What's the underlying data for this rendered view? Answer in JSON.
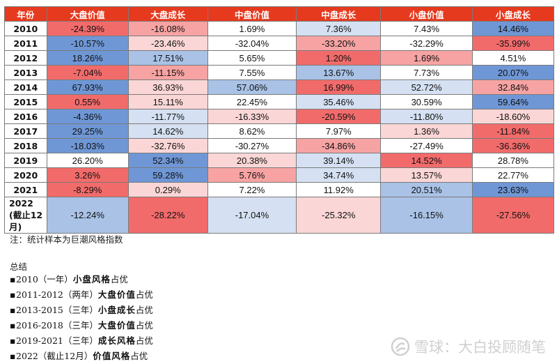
{
  "colors": {
    "header_bg": "#e63a1f",
    "red_dark": "#f26b6b",
    "red_medium": "#f7a3a3",
    "red_light": "#fbd6d6",
    "neutral": "#ffffff",
    "blue_light": "#d5e1f2",
    "blue_medium": "#a9c2e6",
    "blue_dark": "#6f97d6"
  },
  "table": {
    "headers": [
      "年份",
      "大盘价值",
      "大盘成长",
      "中盘价值",
      "中盘成长",
      "小盘价值",
      "小盘成长"
    ],
    "rows": [
      {
        "year": "2010",
        "cells": [
          {
            "text": "-24.39%",
            "tone": "red_dark"
          },
          {
            "text": "-16.08%",
            "tone": "red_medium"
          },
          {
            "text": "1.69%",
            "tone": "neutral"
          },
          {
            "text": "7.36%",
            "tone": "blue_light"
          },
          {
            "text": "7.43%",
            "tone": "neutral"
          },
          {
            "text": "14.46%",
            "tone": "blue_dark"
          }
        ]
      },
      {
        "year": "2011",
        "cells": [
          {
            "text": "-10.57%",
            "tone": "blue_dark"
          },
          {
            "text": "-23.46%",
            "tone": "red_light"
          },
          {
            "text": "-32.04%",
            "tone": "neutral"
          },
          {
            "text": "-33.20%",
            "tone": "red_medium"
          },
          {
            "text": "-32.29%",
            "tone": "neutral"
          },
          {
            "text": "-35.99%",
            "tone": "red_dark"
          }
        ]
      },
      {
        "year": "2012",
        "cells": [
          {
            "text": "18.26%",
            "tone": "blue_dark"
          },
          {
            "text": "17.51%",
            "tone": "blue_medium"
          },
          {
            "text": "5.65%",
            "tone": "neutral"
          },
          {
            "text": "1.20%",
            "tone": "red_dark"
          },
          {
            "text": "1.69%",
            "tone": "red_medium"
          },
          {
            "text": "4.51%",
            "tone": "neutral"
          }
        ]
      },
      {
        "year": "2013",
        "cells": [
          {
            "text": "-7.04%",
            "tone": "red_dark"
          },
          {
            "text": "-11.15%",
            "tone": "red_medium"
          },
          {
            "text": "7.55%",
            "tone": "neutral"
          },
          {
            "text": "13.67%",
            "tone": "blue_medium"
          },
          {
            "text": "7.73%",
            "tone": "neutral"
          },
          {
            "text": "20.07%",
            "tone": "blue_dark"
          }
        ]
      },
      {
        "year": "2014",
        "cells": [
          {
            "text": "67.93%",
            "tone": "blue_dark"
          },
          {
            "text": "36.93%",
            "tone": "red_light"
          },
          {
            "text": "57.06%",
            "tone": "blue_medium"
          },
          {
            "text": "16.99%",
            "tone": "red_dark"
          },
          {
            "text": "52.72%",
            "tone": "blue_light"
          },
          {
            "text": "32.84%",
            "tone": "red_medium"
          }
        ]
      },
      {
        "year": "2015",
        "cells": [
          {
            "text": "0.55%",
            "tone": "red_dark"
          },
          {
            "text": "15.11%",
            "tone": "red_light"
          },
          {
            "text": "22.45%",
            "tone": "neutral"
          },
          {
            "text": "35.46%",
            "tone": "blue_light"
          },
          {
            "text": "30.59%",
            "tone": "neutral"
          },
          {
            "text": "59.64%",
            "tone": "blue_dark"
          }
        ]
      },
      {
        "year": "2016",
        "cells": [
          {
            "text": "-4.36%",
            "tone": "blue_dark"
          },
          {
            "text": "-11.77%",
            "tone": "blue_light"
          },
          {
            "text": "-16.33%",
            "tone": "red_light"
          },
          {
            "text": "-20.59%",
            "tone": "red_dark"
          },
          {
            "text": "-11.80%",
            "tone": "blue_light"
          },
          {
            "text": "-18.60%",
            "tone": "red_light"
          }
        ]
      },
      {
        "year": "2017",
        "cells": [
          {
            "text": "29.25%",
            "tone": "blue_dark"
          },
          {
            "text": "14.62%",
            "tone": "blue_light"
          },
          {
            "text": "8.62%",
            "tone": "neutral"
          },
          {
            "text": "7.97%",
            "tone": "neutral"
          },
          {
            "text": "1.36%",
            "tone": "red_light"
          },
          {
            "text": "-11.84%",
            "tone": "red_dark"
          }
        ]
      },
      {
        "year": "2018",
        "cells": [
          {
            "text": "-18.03%",
            "tone": "blue_dark"
          },
          {
            "text": "-32.76%",
            "tone": "red_light"
          },
          {
            "text": "-30.27%",
            "tone": "neutral"
          },
          {
            "text": "-34.86%",
            "tone": "red_medium"
          },
          {
            "text": "-27.49%",
            "tone": "neutral"
          },
          {
            "text": "-36.36%",
            "tone": "red_dark"
          }
        ]
      },
      {
        "year": "2019",
        "cells": [
          {
            "text": "26.20%",
            "tone": "neutral"
          },
          {
            "text": "52.34%",
            "tone": "blue_dark"
          },
          {
            "text": "20.38%",
            "tone": "red_light"
          },
          {
            "text": "39.14%",
            "tone": "blue_light"
          },
          {
            "text": "14.52%",
            "tone": "red_dark"
          },
          {
            "text": "28.78%",
            "tone": "neutral"
          }
        ]
      },
      {
        "year": "2020",
        "cells": [
          {
            "text": "3.26%",
            "tone": "red_dark"
          },
          {
            "text": "59.28%",
            "tone": "blue_dark"
          },
          {
            "text": "5.76%",
            "tone": "red_medium"
          },
          {
            "text": "34.74%",
            "tone": "blue_light"
          },
          {
            "text": "13.57%",
            "tone": "red_light"
          },
          {
            "text": "22.77%",
            "tone": "neutral"
          }
        ]
      },
      {
        "year": "2021",
        "cells": [
          {
            "text": "-8.29%",
            "tone": "red_dark"
          },
          {
            "text": "0.29%",
            "tone": "red_light"
          },
          {
            "text": "7.22%",
            "tone": "neutral"
          },
          {
            "text": "11.92%",
            "tone": "neutral"
          },
          {
            "text": "20.51%",
            "tone": "blue_medium"
          },
          {
            "text": "23.63%",
            "tone": "blue_dark"
          }
        ]
      },
      {
        "year": "2022 (截止12月)",
        "cells": [
          {
            "text": "-12.24%",
            "tone": "blue_medium"
          },
          {
            "text": "-28.22%",
            "tone": "red_dark"
          },
          {
            "text": "-17.04%",
            "tone": "blue_light"
          },
          {
            "text": "-25.32%",
            "tone": "red_light"
          },
          {
            "text": "-16.15%",
            "tone": "blue_medium"
          },
          {
            "text": "-27.56%",
            "tone": "red_dark"
          }
        ]
      }
    ]
  },
  "note": "注：统计样本为巨潮风格指数",
  "summary": {
    "title": "总结",
    "bullet": "▪",
    "items": [
      {
        "period": "2010（一年）",
        "style": "小盘风格",
        "suffix": "占优"
      },
      {
        "period": "2011-2012（两年）",
        "style": "大盘价值",
        "suffix": "占优"
      },
      {
        "period": "2013-2015（三年）",
        "style": "小盘成长",
        "suffix": "占优"
      },
      {
        "period": "2016-2018（三年）",
        "style": "大盘价值",
        "suffix": "占优"
      },
      {
        "period": "2019-2021（三年）",
        "style": "成长风格",
        "suffix": "占优"
      },
      {
        "period": "2022（截止12月）",
        "style": "价值风格",
        "suffix": "占优"
      }
    ]
  },
  "watermark": {
    "text": "雪球：大白投顾随笔",
    "icon": "snowball-logo"
  }
}
